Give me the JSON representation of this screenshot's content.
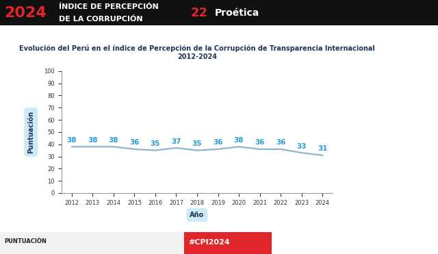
{
  "chart_data": {
    "type": "line",
    "title": "Evolución del Perú en el índice de Percepción de la Corrupción de Transparencia Internacional 2012-2024",
    "x_label": "Año",
    "y_label": "Puntuación",
    "categories": [
      "2012",
      "2013",
      "2014",
      "2015",
      "2016",
      "2017",
      "2018",
      "2019",
      "2020",
      "2021",
      "2022",
      "2023",
      "2024"
    ],
    "values": [
      38,
      38,
      38,
      36,
      35,
      37,
      35,
      36,
      38,
      36,
      36,
      33,
      31
    ],
    "color": "#8fb3cc",
    "ylim": [
      0,
      100
    ],
    "yticks": [
      0,
      10,
      20,
      30,
      40,
      50,
      60,
      70,
      80,
      90,
      100
    ],
    "grid": false,
    "data_labels": true,
    "annotations": [
      "2024",
      "ÍNDICE DE PERCEPCIÓN",
      "DE LA CORRUPCIÓN",
      "22",
      "Proética",
      "PUNTUACIÓN",
      "#CPI2024"
    ]
  }
}
